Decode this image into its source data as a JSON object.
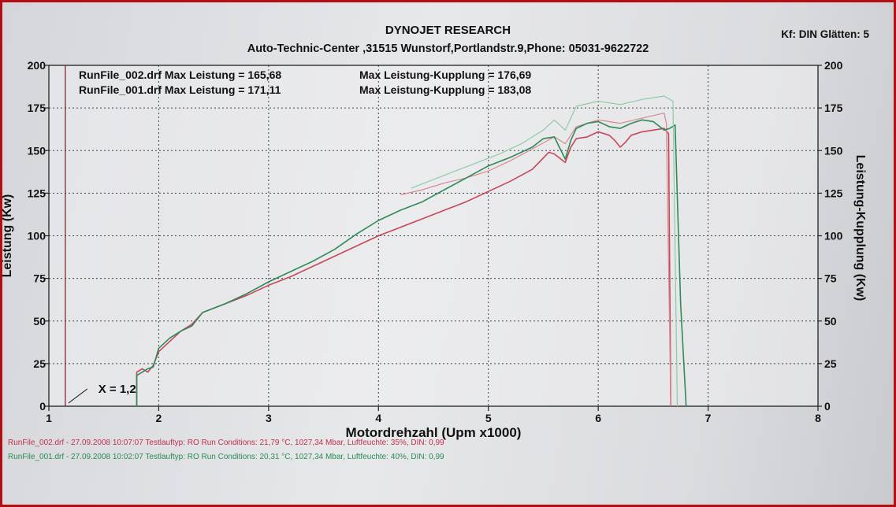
{
  "header": {
    "title": "DYNOJET RESEARCH",
    "subtitle": "Auto-Technic-Center ,31515 Wunstorf,Portlandstr.9,Phone: 05031-9622722",
    "correction": "Kf: DIN  Glätten: 5"
  },
  "summary": [
    {
      "file": "RunFile_002.drf Max Leistung = 165,68",
      "clutch": "Max Leistung-Kupplung = 176,69"
    },
    {
      "file": "RunFile_001.drf Max Leistung = 171,11",
      "clutch": "Max Leistung-Kupplung = 183,08"
    }
  ],
  "footer": [
    {
      "text": "RunFile_002.drf - 27.09.2008 10:07:07   Testlauftyp: RO   Run Conditions: 21,79 °C, 1027,34 Mbar,   Luftfeuchte: 35%, DIN: 0,99",
      "color": "#c2314a"
    },
    {
      "text": "RunFile_001.drf - 27.09.2008 10:02:07   Testlauftyp: RO   Run Conditions: 20,31 °C, 1027,34 Mbar,   Luftfeuchte: 40%, DIN: 0,99",
      "color": "#2a8c55"
    }
  ],
  "chart_data": {
    "type": "line",
    "xlabel": "Motordrehzahl (Upm x1000)",
    "ylabel": "Leistung (Kw)",
    "y2label": "Leistung-Kupplung (Kw)",
    "xlim": [
      1,
      8
    ],
    "ylim": [
      0,
      200
    ],
    "y2lim": [
      0,
      200
    ],
    "x_ticks": [
      1,
      2,
      3,
      4,
      5,
      6,
      7,
      8
    ],
    "y_ticks": [
      0,
      25,
      50,
      75,
      100,
      125,
      150,
      175,
      200
    ],
    "grid": true,
    "annotation": "X = 1,2",
    "series": [
      {
        "name": "RunFile_002.drf",
        "measure": "Leistung",
        "color": "#c8465a",
        "points": [
          [
            1.8,
            0
          ],
          [
            1.8,
            20
          ],
          [
            1.85,
            22
          ],
          [
            1.9,
            20
          ],
          [
            1.95,
            24
          ],
          [
            2.0,
            32
          ],
          [
            2.1,
            38
          ],
          [
            2.2,
            44
          ],
          [
            2.3,
            48
          ],
          [
            2.4,
            55
          ],
          [
            2.6,
            60
          ],
          [
            2.8,
            65
          ],
          [
            3.0,
            71
          ],
          [
            3.2,
            76
          ],
          [
            3.4,
            82
          ],
          [
            3.6,
            88
          ],
          [
            3.8,
            94
          ],
          [
            4.0,
            100
          ],
          [
            4.2,
            105
          ],
          [
            4.4,
            110
          ],
          [
            4.6,
            115
          ],
          [
            4.8,
            120
          ],
          [
            5.0,
            126
          ],
          [
            5.2,
            132
          ],
          [
            5.4,
            139
          ],
          [
            5.55,
            149
          ],
          [
            5.6,
            148
          ],
          [
            5.7,
            143
          ],
          [
            5.75,
            152
          ],
          [
            5.8,
            157
          ],
          [
            5.9,
            158
          ],
          [
            6.0,
            161
          ],
          [
            6.1,
            159
          ],
          [
            6.15,
            156
          ],
          [
            6.2,
            152
          ],
          [
            6.25,
            155
          ],
          [
            6.3,
            159
          ],
          [
            6.4,
            161
          ],
          [
            6.5,
            162
          ],
          [
            6.6,
            163
          ],
          [
            6.64,
            160
          ],
          [
            6.66,
            0
          ]
        ]
      },
      {
        "name": "RunFile_002.drf",
        "measure": "Leistung-Kupplung",
        "color": "#d88892",
        "points": [
          [
            4.2,
            124
          ],
          [
            4.4,
            127
          ],
          [
            4.6,
            131
          ],
          [
            4.8,
            134
          ],
          [
            5.0,
            138
          ],
          [
            5.2,
            144
          ],
          [
            5.4,
            151
          ],
          [
            5.6,
            158
          ],
          [
            5.7,
            154
          ],
          [
            5.8,
            164
          ],
          [
            6.0,
            168
          ],
          [
            6.2,
            166
          ],
          [
            6.4,
            169
          ],
          [
            6.6,
            172
          ],
          [
            6.62,
            166
          ],
          [
            6.66,
            0
          ]
        ]
      },
      {
        "name": "RunFile_001.drf",
        "measure": "Leistung",
        "color": "#2f8a59",
        "points": [
          [
            1.8,
            0
          ],
          [
            1.8,
            18
          ],
          [
            1.85,
            20
          ],
          [
            1.9,
            22
          ],
          [
            1.95,
            23
          ],
          [
            2.0,
            34
          ],
          [
            2.1,
            40
          ],
          [
            2.2,
            44
          ],
          [
            2.3,
            47
          ],
          [
            2.4,
            55
          ],
          [
            2.6,
            60
          ],
          [
            2.8,
            66
          ],
          [
            3.0,
            73
          ],
          [
            3.2,
            79
          ],
          [
            3.4,
            85
          ],
          [
            3.6,
            92
          ],
          [
            3.8,
            101
          ],
          [
            4.0,
            109
          ],
          [
            4.2,
            115
          ],
          [
            4.4,
            120
          ],
          [
            4.6,
            127
          ],
          [
            4.8,
            134
          ],
          [
            5.0,
            141
          ],
          [
            5.2,
            146
          ],
          [
            5.4,
            152
          ],
          [
            5.5,
            157
          ],
          [
            5.6,
            158
          ],
          [
            5.7,
            145
          ],
          [
            5.75,
            156
          ],
          [
            5.8,
            163
          ],
          [
            5.9,
            166
          ],
          [
            6.0,
            167
          ],
          [
            6.1,
            164
          ],
          [
            6.2,
            163
          ],
          [
            6.3,
            166
          ],
          [
            6.4,
            168
          ],
          [
            6.5,
            167
          ],
          [
            6.6,
            162
          ],
          [
            6.65,
            163
          ],
          [
            6.7,
            165
          ],
          [
            6.75,
            60
          ],
          [
            6.8,
            0
          ]
        ]
      },
      {
        "name": "RunFile_001.drf",
        "measure": "Leistung-Kupplung",
        "color": "#8fcaa6",
        "points": [
          [
            4.3,
            128
          ],
          [
            4.5,
            133
          ],
          [
            4.7,
            138
          ],
          [
            4.9,
            143
          ],
          [
            5.1,
            148
          ],
          [
            5.3,
            154
          ],
          [
            5.5,
            162
          ],
          [
            5.6,
            168
          ],
          [
            5.7,
            162
          ],
          [
            5.8,
            176
          ],
          [
            6.0,
            179
          ],
          [
            6.2,
            177
          ],
          [
            6.4,
            180
          ],
          [
            6.6,
            182
          ],
          [
            6.68,
            179
          ],
          [
            6.72,
            0
          ]
        ]
      }
    ]
  }
}
